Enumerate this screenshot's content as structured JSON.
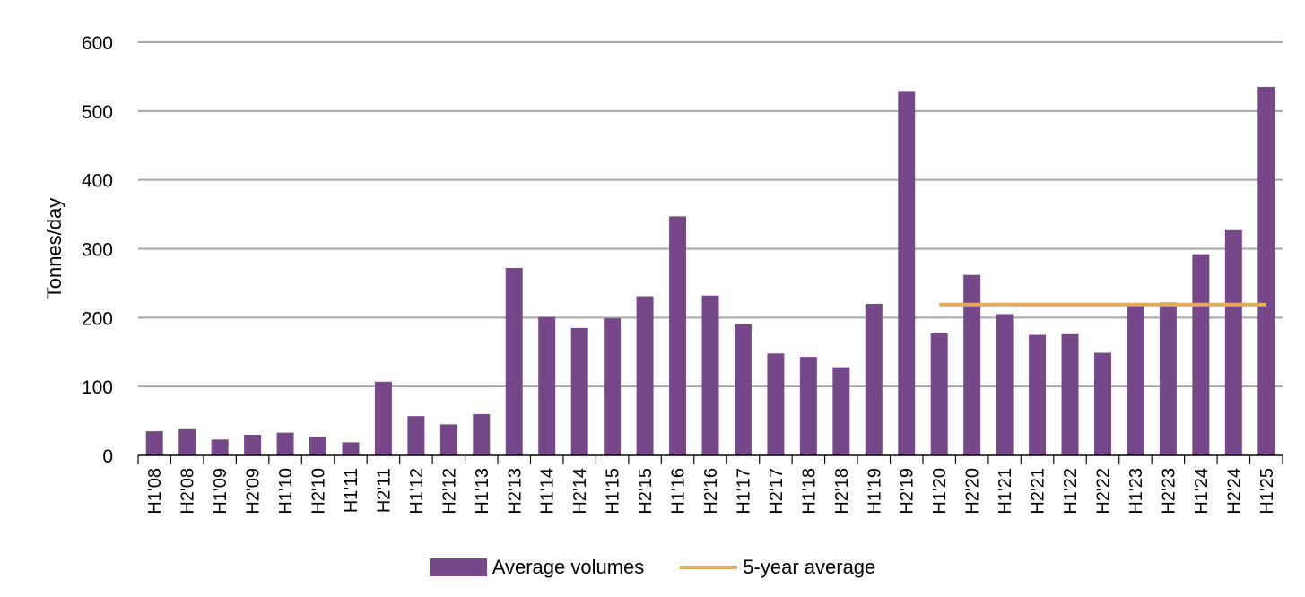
{
  "chart_data": {
    "type": "bar",
    "ylabel": "Tonnes/day",
    "ylim": [
      0,
      600
    ],
    "yticks": [
      "0",
      "100",
      "200",
      "300",
      "400",
      "500",
      "600"
    ],
    "grid": true,
    "legend_position": "bottom",
    "categories": [
      "H1'08",
      "H2'08",
      "H1'09",
      "H2'09",
      "H1'10",
      "H2'10",
      "H1'11",
      "H2'11",
      "H1'12",
      "H2'12",
      "H1'13",
      "H2'13",
      "H1'14",
      "H2'14",
      "H1'15",
      "H2'15",
      "H1'16",
      "H2'16",
      "H1'17",
      "H2'17",
      "H1'18",
      "H2'18",
      "H1'19",
      "H2'19",
      "H1'20",
      "H2'20",
      "H1'21",
      "H2'21",
      "H1'22",
      "H2'22",
      "H1'23",
      "H2'23",
      "H1'24",
      "H2'24",
      "H1'25"
    ],
    "series": [
      {
        "name": "Average volumes",
        "type": "bar",
        "color": "#76488a",
        "values": [
          35,
          38,
          23,
          30,
          33,
          27,
          19,
          107,
          57,
          45,
          60,
          272,
          201,
          185,
          199,
          231,
          347,
          232,
          190,
          148,
          143,
          128,
          220,
          528,
          177,
          262,
          205,
          175,
          176,
          149,
          219,
          222,
          292,
          327,
          535
        ]
      },
      {
        "name": "5-year average",
        "type": "line",
        "color": "#e3ab5b",
        "x_range": [
          "H1'20",
          "H1'25"
        ],
        "value": 219
      }
    ]
  }
}
